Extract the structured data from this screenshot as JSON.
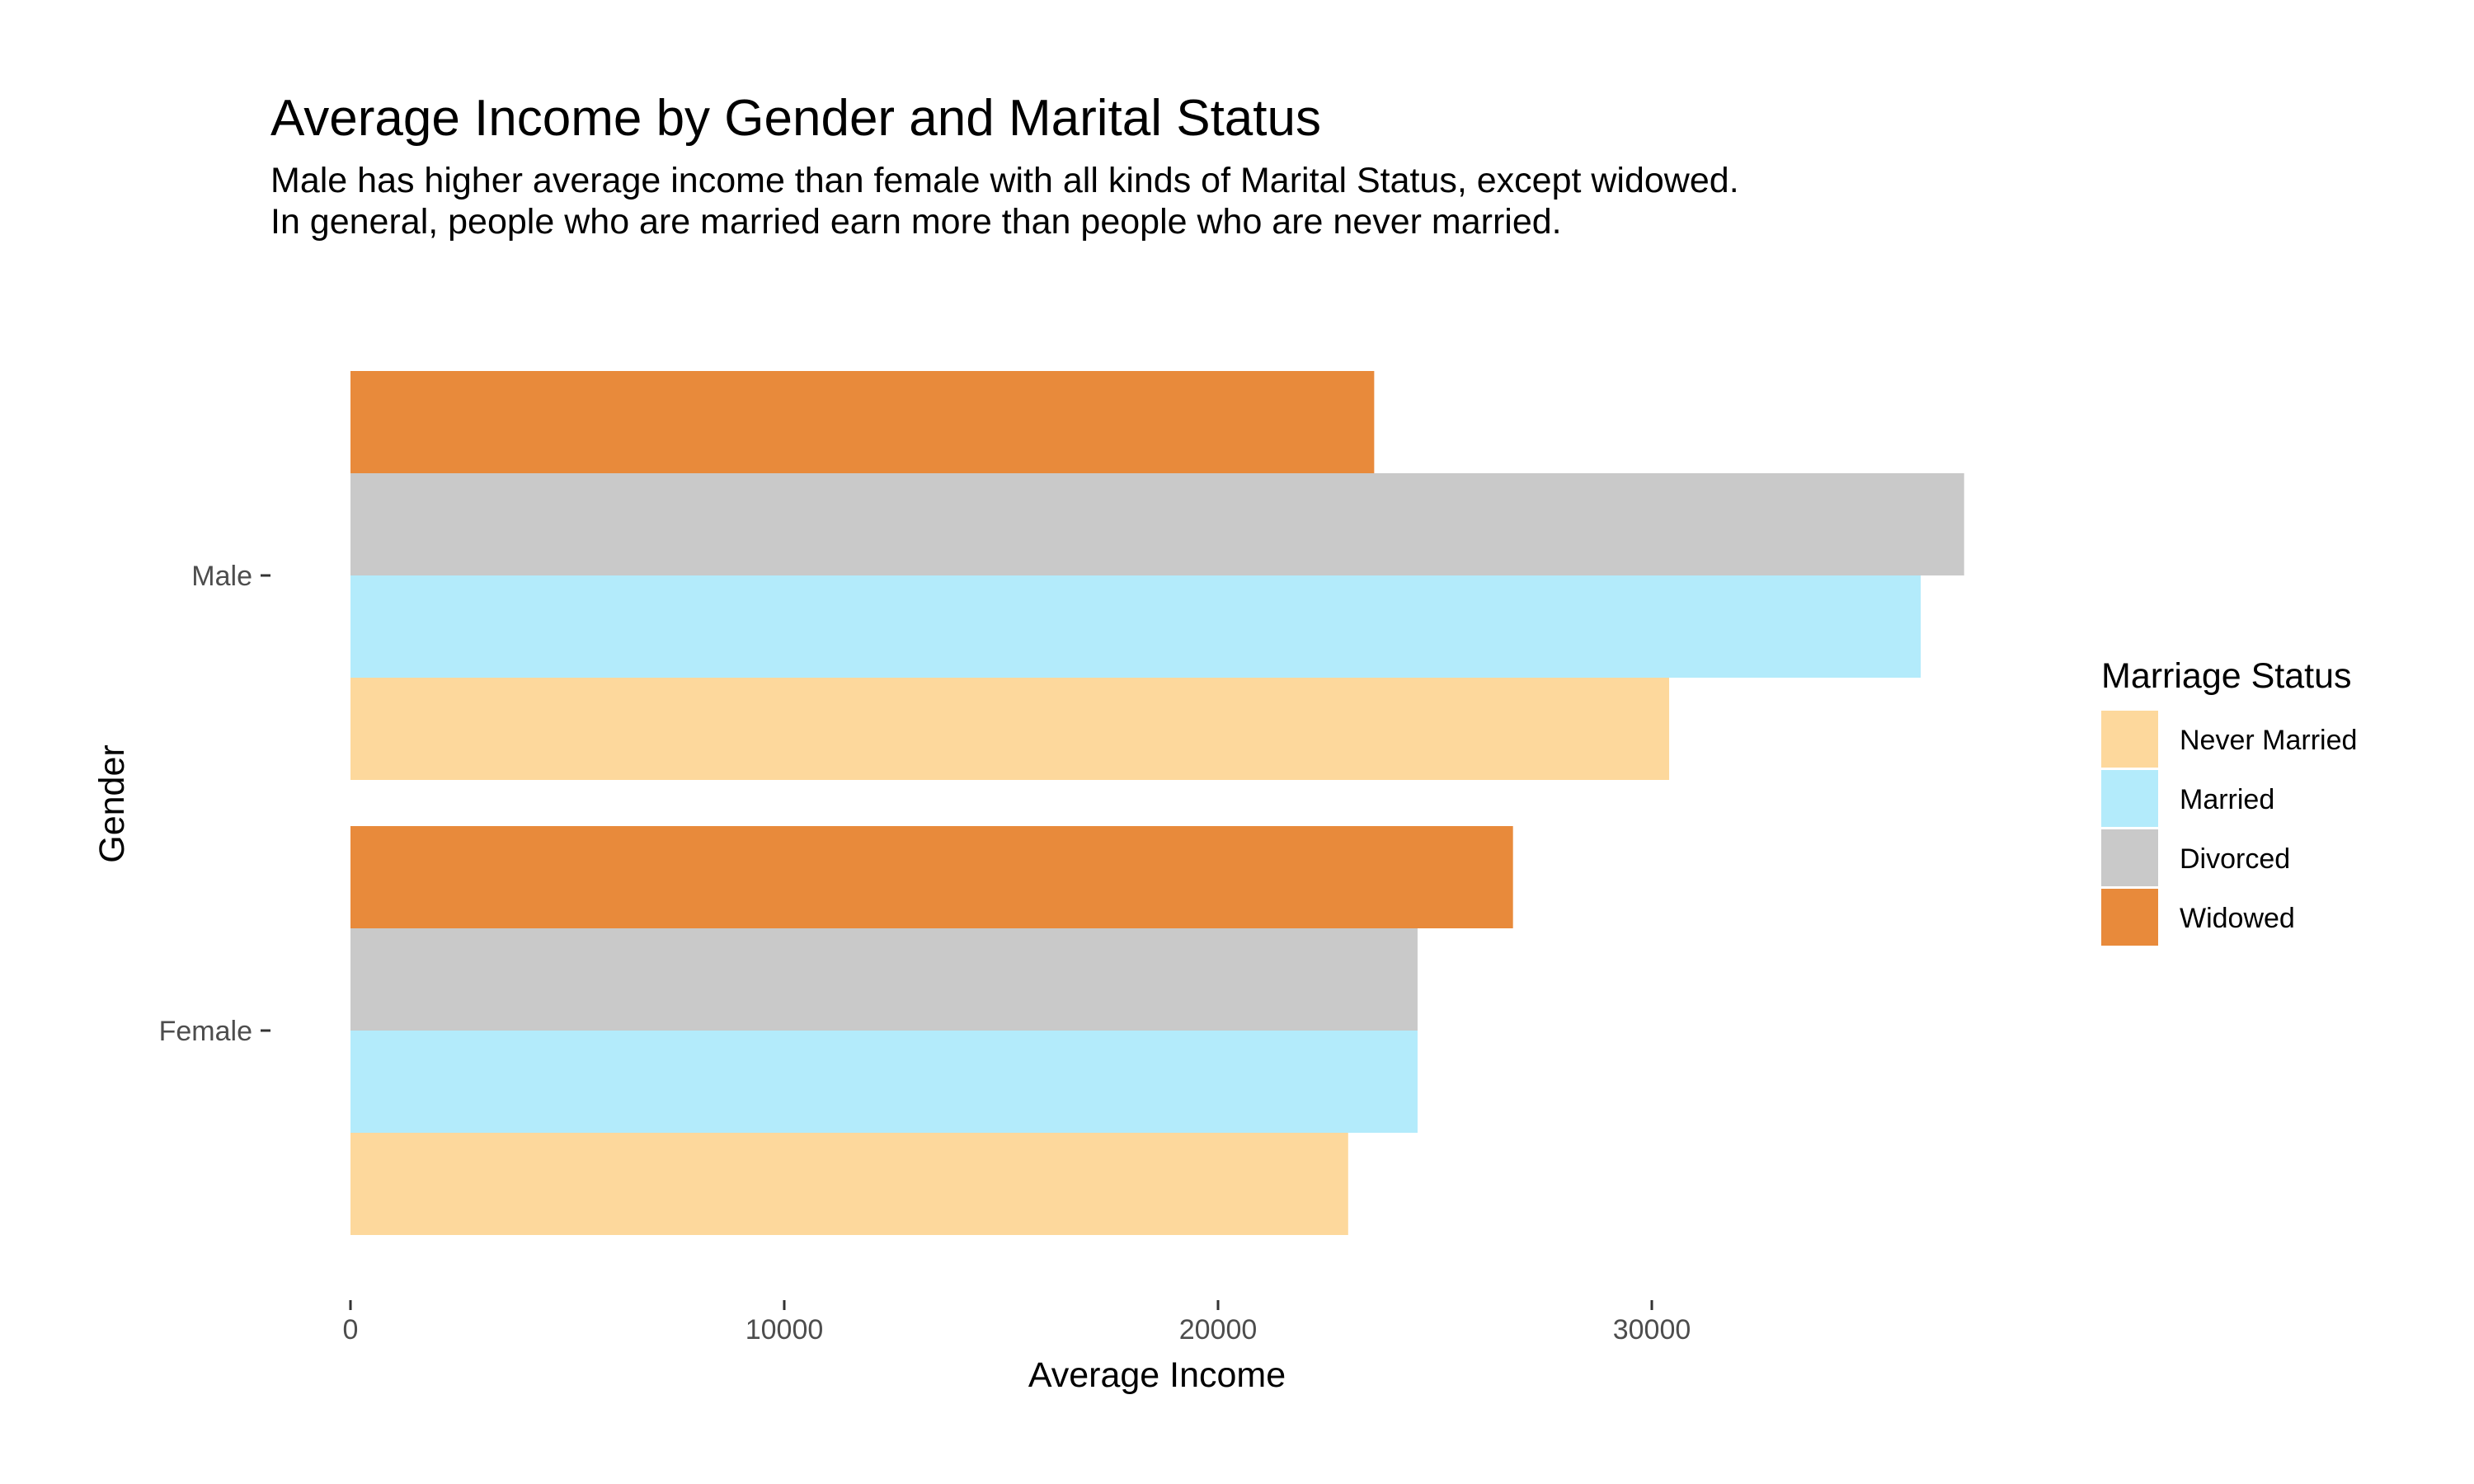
{
  "chart_data": {
    "type": "bar",
    "orientation": "horizontal",
    "title": "Average Income by Gender and Marital Status",
    "subtitle": "Male has higher average income than female with all kinds of Marital Status, except widowed. In general, people who are married earn more than people who are never married.",
    "xlabel": "Average Income",
    "ylabel": "Gender",
    "categories": [
      "Male",
      "Female"
    ],
    "xlim": [
      0,
      40000
    ],
    "xticks": [
      0,
      10000,
      20000,
      30000
    ],
    "grid": false,
    "legend": {
      "title": "Marriage Status",
      "position": "right"
    },
    "series": [
      {
        "name": "Never Married",
        "color": "#FDD89C",
        "values": [
          30400,
          23000
        ]
      },
      {
        "name": "Married",
        "color": "#B3EBFB",
        "values": [
          36200,
          24600
        ]
      },
      {
        "name": "Divorced",
        "color": "#C9C9C9",
        "values": [
          37200,
          24600
        ]
      },
      {
        "name": "Widowed",
        "color": "#E88A3B",
        "values": [
          23600,
          26800
        ]
      }
    ]
  }
}
